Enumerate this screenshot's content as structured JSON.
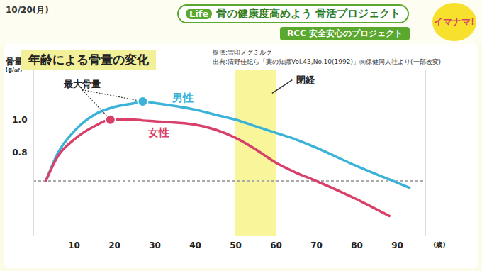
{
  "header": {
    "date": "10/20(月)",
    "tag": "Life",
    "headline": "骨の健康度高めよう 骨活プロジェクト",
    "subheadline": "RCC 安全安心のプロジェクト",
    "logo": "イマナマ!"
  },
  "chart_data": {
    "type": "line",
    "title": "年齢による骨量の変化",
    "credits": [
      "提供:雪印メグミルク",
      "出典:清野佳紀ら「薬の知識Vol.43,No.10(1992)」㈱保健同人社より(一部改変)"
    ],
    "y_label": "骨量",
    "y_unit": "(g/㎠)",
    "x_label": "(歳)",
    "x": [
      3,
      6,
      10,
      15,
      19,
      25,
      27,
      30,
      40,
      45,
      50,
      55,
      60,
      65,
      70,
      80,
      88,
      93
    ],
    "series": [
      {
        "name": "男性",
        "color": "#3bb3d9",
        "values": [
          0.63,
          0.8,
          0.93,
          1.03,
          1.07,
          1.1,
          1.11,
          1.1,
          1.06,
          1.03,
          1.0,
          0.96,
          0.92,
          0.88,
          0.83,
          0.72,
          0.64,
          0.59
        ],
        "peak": {
          "x": 27,
          "y": 1.11
        }
      },
      {
        "name": "女性",
        "color": "#d8406a",
        "values": [
          0.63,
          0.78,
          0.88,
          0.96,
          1.0,
          1.0,
          0.995,
          0.99,
          0.97,
          0.94,
          0.89,
          0.82,
          0.74,
          0.68,
          0.63,
          0.52,
          0.42,
          null
        ],
        "peak": {
          "x": 19,
          "y": 1.0
        }
      }
    ],
    "peak_label": "最大骨量",
    "band": {
      "label": "閉経",
      "x": [
        50,
        60
      ],
      "color": "#f5f27a"
    },
    "reference_line": {
      "y": 0.63,
      "line_style": "dashed",
      "color": "#aaaaaa"
    },
    "xlim": [
      0,
      97
    ],
    "xticks": [
      10,
      20,
      30,
      40,
      50,
      60,
      70,
      80,
      90
    ],
    "ylim": [
      0.3,
      1.3
    ],
    "yticks": [
      0.8,
      {
        "value": 1,
        "label": "1.0"
      }
    ],
    "grid": false,
    "legend": false
  }
}
